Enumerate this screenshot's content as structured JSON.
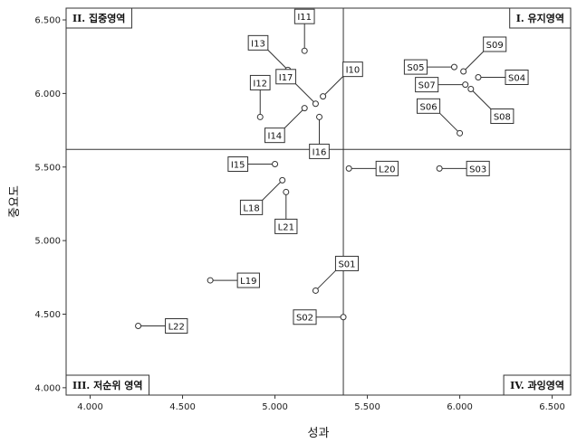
{
  "chart_data": {
    "type": "scatter",
    "xlabel": "성과",
    "ylabel": "중요도",
    "xlim": [
      3.87,
      6.6
    ],
    "ylim": [
      3.95,
      6.58
    ],
    "x_ticks": [
      "4.000",
      "4.500",
      "5.000",
      "5.500",
      "6.000",
      "6.500"
    ],
    "y_ticks": [
      "4.000",
      "4.500",
      "5.000",
      "5.500",
      "6.000",
      "6.500"
    ],
    "x_tick_values": [
      4.0,
      4.5,
      5.0,
      5.5,
      6.0,
      6.5
    ],
    "y_tick_values": [
      4.0,
      4.5,
      5.0,
      5.5,
      6.0,
      6.5
    ],
    "reference_lines": {
      "x": 5.37,
      "y": 5.62
    },
    "quadrants": [
      {
        "label": "II. 집중영역",
        "position": "top-left"
      },
      {
        "label": "I. 유지영역",
        "position": "top-right"
      },
      {
        "label": "III. 저순위 영역",
        "position": "bottom-left"
      },
      {
        "label": "IV. 과잉영역",
        "position": "bottom-right"
      }
    ],
    "points": [
      {
        "label": "I11",
        "x": 5.16,
        "y": 6.29,
        "anchor": "above"
      },
      {
        "label": "I13",
        "x": 5.07,
        "y": 6.16,
        "anchor": "upper-left"
      },
      {
        "label": "I10",
        "x": 5.26,
        "y": 5.98,
        "anchor": "upper-right"
      },
      {
        "label": "I17",
        "x": 5.22,
        "y": 5.93,
        "anchor": "upper-left"
      },
      {
        "label": "I12",
        "x": 4.92,
        "y": 5.84,
        "anchor": "above"
      },
      {
        "label": "I14",
        "x": 5.16,
        "y": 5.9,
        "anchor": "lower-left"
      },
      {
        "label": "I16",
        "x": 5.24,
        "y": 5.84,
        "anchor": "below"
      },
      {
        "label": "S09",
        "x": 6.02,
        "y": 6.15,
        "anchor": "upper-right"
      },
      {
        "label": "S05",
        "x": 5.97,
        "y": 6.18,
        "anchor": "left"
      },
      {
        "label": "S04",
        "x": 6.1,
        "y": 6.11,
        "anchor": "right"
      },
      {
        "label": "S07",
        "x": 6.03,
        "y": 6.06,
        "anchor": "left"
      },
      {
        "label": "S08",
        "x": 6.06,
        "y": 6.03,
        "anchor": "lower-right"
      },
      {
        "label": "S06",
        "x": 6.0,
        "y": 5.73,
        "anchor": "upper-left"
      },
      {
        "label": "I15",
        "x": 5.0,
        "y": 5.52,
        "anchor": "left"
      },
      {
        "label": "L18",
        "x": 5.04,
        "y": 5.41,
        "anchor": "lower-left"
      },
      {
        "label": "L21",
        "x": 5.06,
        "y": 5.33,
        "anchor": "below"
      },
      {
        "label": "L20",
        "x": 5.4,
        "y": 5.49,
        "anchor": "right"
      },
      {
        "label": "S03",
        "x": 5.89,
        "y": 5.49,
        "anchor": "right"
      },
      {
        "label": "L19",
        "x": 4.65,
        "y": 4.73,
        "anchor": "right"
      },
      {
        "label": "S01",
        "x": 5.22,
        "y": 4.66,
        "anchor": "upper-right"
      },
      {
        "label": "L22",
        "x": 4.26,
        "y": 4.42,
        "anchor": "right"
      },
      {
        "label": "S02",
        "x": 5.37,
        "y": 4.48,
        "anchor": "left"
      }
    ]
  }
}
